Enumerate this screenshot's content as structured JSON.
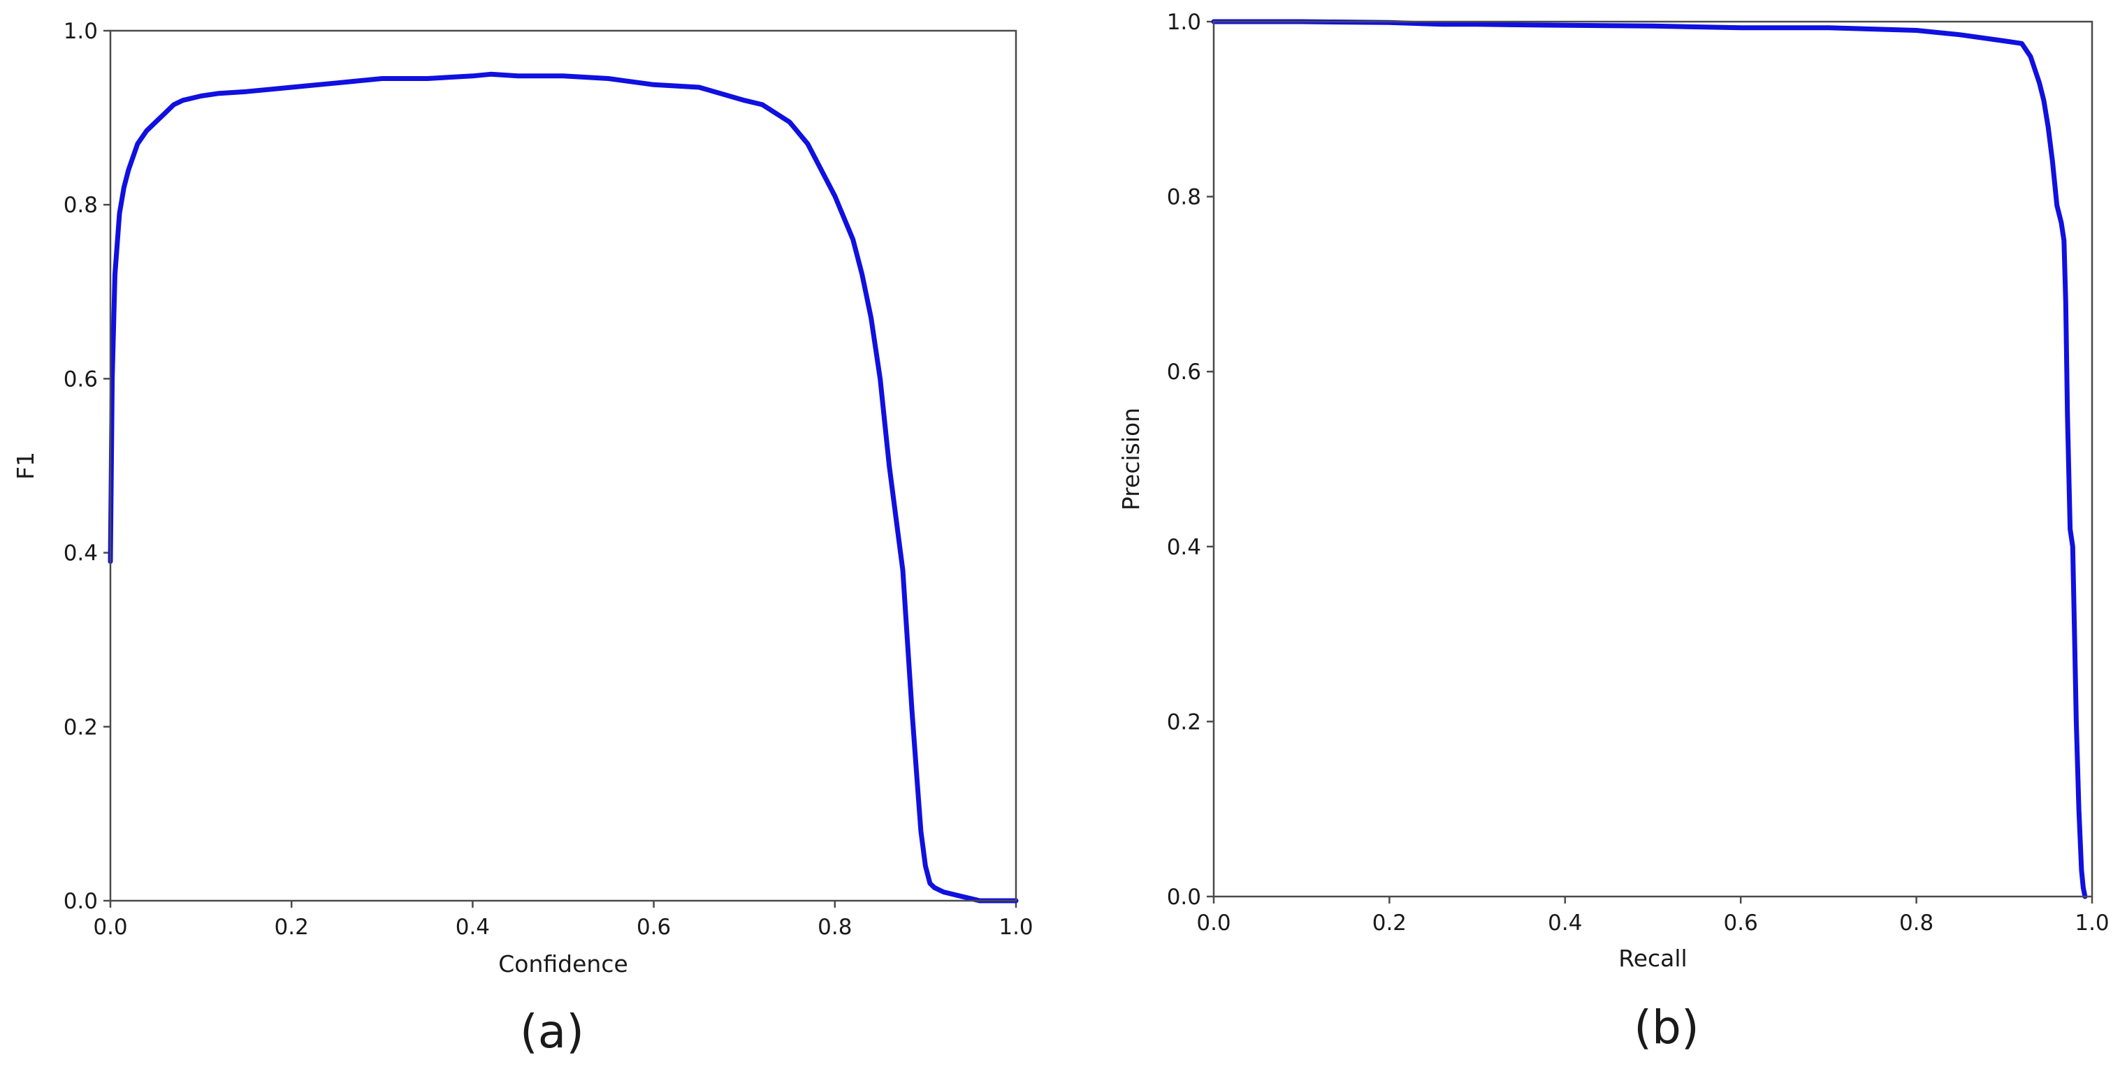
{
  "chart_data": [
    {
      "type": "line",
      "caption": "(a)",
      "xlabel": "Confidence",
      "ylabel": "F1",
      "xlim": [
        0.0,
        1.0
      ],
      "ylim": [
        0.0,
        1.0
      ],
      "xticks": [
        "0.0",
        "0.2",
        "0.4",
        "0.6",
        "0.8",
        "1.0"
      ],
      "yticks": [
        "0.0",
        "0.2",
        "0.4",
        "0.6",
        "0.8",
        "1.0"
      ],
      "grid": false,
      "legend": "none",
      "color": "#1010e0",
      "series": [
        {
          "x": [
            0.0,
            0.002,
            0.005,
            0.01,
            0.015,
            0.02,
            0.03,
            0.04,
            0.05,
            0.06,
            0.07,
            0.08,
            0.1,
            0.12,
            0.15,
            0.2,
            0.25,
            0.3,
            0.35,
            0.4,
            0.42,
            0.45,
            0.5,
            0.55,
            0.6,
            0.65,
            0.7,
            0.72,
            0.75,
            0.77,
            0.8,
            0.82,
            0.83,
            0.84,
            0.85,
            0.86,
            0.87,
            0.875,
            0.88,
            0.885,
            0.89,
            0.895,
            0.9,
            0.905,
            0.91,
            0.92,
            0.94,
            0.96,
            1.0
          ],
          "y": [
            0.39,
            0.6,
            0.72,
            0.79,
            0.82,
            0.84,
            0.87,
            0.885,
            0.895,
            0.905,
            0.915,
            0.92,
            0.925,
            0.928,
            0.93,
            0.935,
            0.94,
            0.945,
            0.945,
            0.948,
            0.95,
            0.948,
            0.948,
            0.945,
            0.938,
            0.935,
            0.92,
            0.915,
            0.895,
            0.87,
            0.81,
            0.76,
            0.72,
            0.67,
            0.6,
            0.5,
            0.42,
            0.38,
            0.3,
            0.22,
            0.15,
            0.08,
            0.04,
            0.02,
            0.015,
            0.01,
            0.005,
            0.0,
            0.0
          ]
        }
      ]
    },
    {
      "type": "line",
      "caption": "(b)",
      "xlabel": "Recall",
      "ylabel": "Precision",
      "xlim": [
        0.0,
        1.0
      ],
      "ylim": [
        0.0,
        1.0
      ],
      "xticks": [
        "0.0",
        "0.2",
        "0.4",
        "0.6",
        "0.8",
        "1.0"
      ],
      "yticks": [
        "0.0",
        "0.2",
        "0.4",
        "0.6",
        "0.8",
        "1.0"
      ],
      "grid": false,
      "legend": "none",
      "color": "#1010e0",
      "series": [
        {
          "x": [
            0.0,
            0.1,
            0.2,
            0.26,
            0.3,
            0.38,
            0.5,
            0.6,
            0.7,
            0.8,
            0.85,
            0.9,
            0.92,
            0.93,
            0.94,
            0.945,
            0.95,
            0.955,
            0.96,
            0.965,
            0.968,
            0.97,
            0.972,
            0.975,
            0.978,
            0.98,
            0.982,
            0.985,
            0.988,
            0.99,
            0.992
          ],
          "y": [
            1.0,
            1.0,
            0.999,
            0.997,
            0.997,
            0.996,
            0.995,
            0.993,
            0.993,
            0.99,
            0.985,
            0.978,
            0.975,
            0.96,
            0.93,
            0.91,
            0.88,
            0.84,
            0.79,
            0.77,
            0.75,
            0.68,
            0.55,
            0.42,
            0.4,
            0.3,
            0.2,
            0.1,
            0.03,
            0.01,
            0.0
          ]
        }
      ]
    }
  ]
}
